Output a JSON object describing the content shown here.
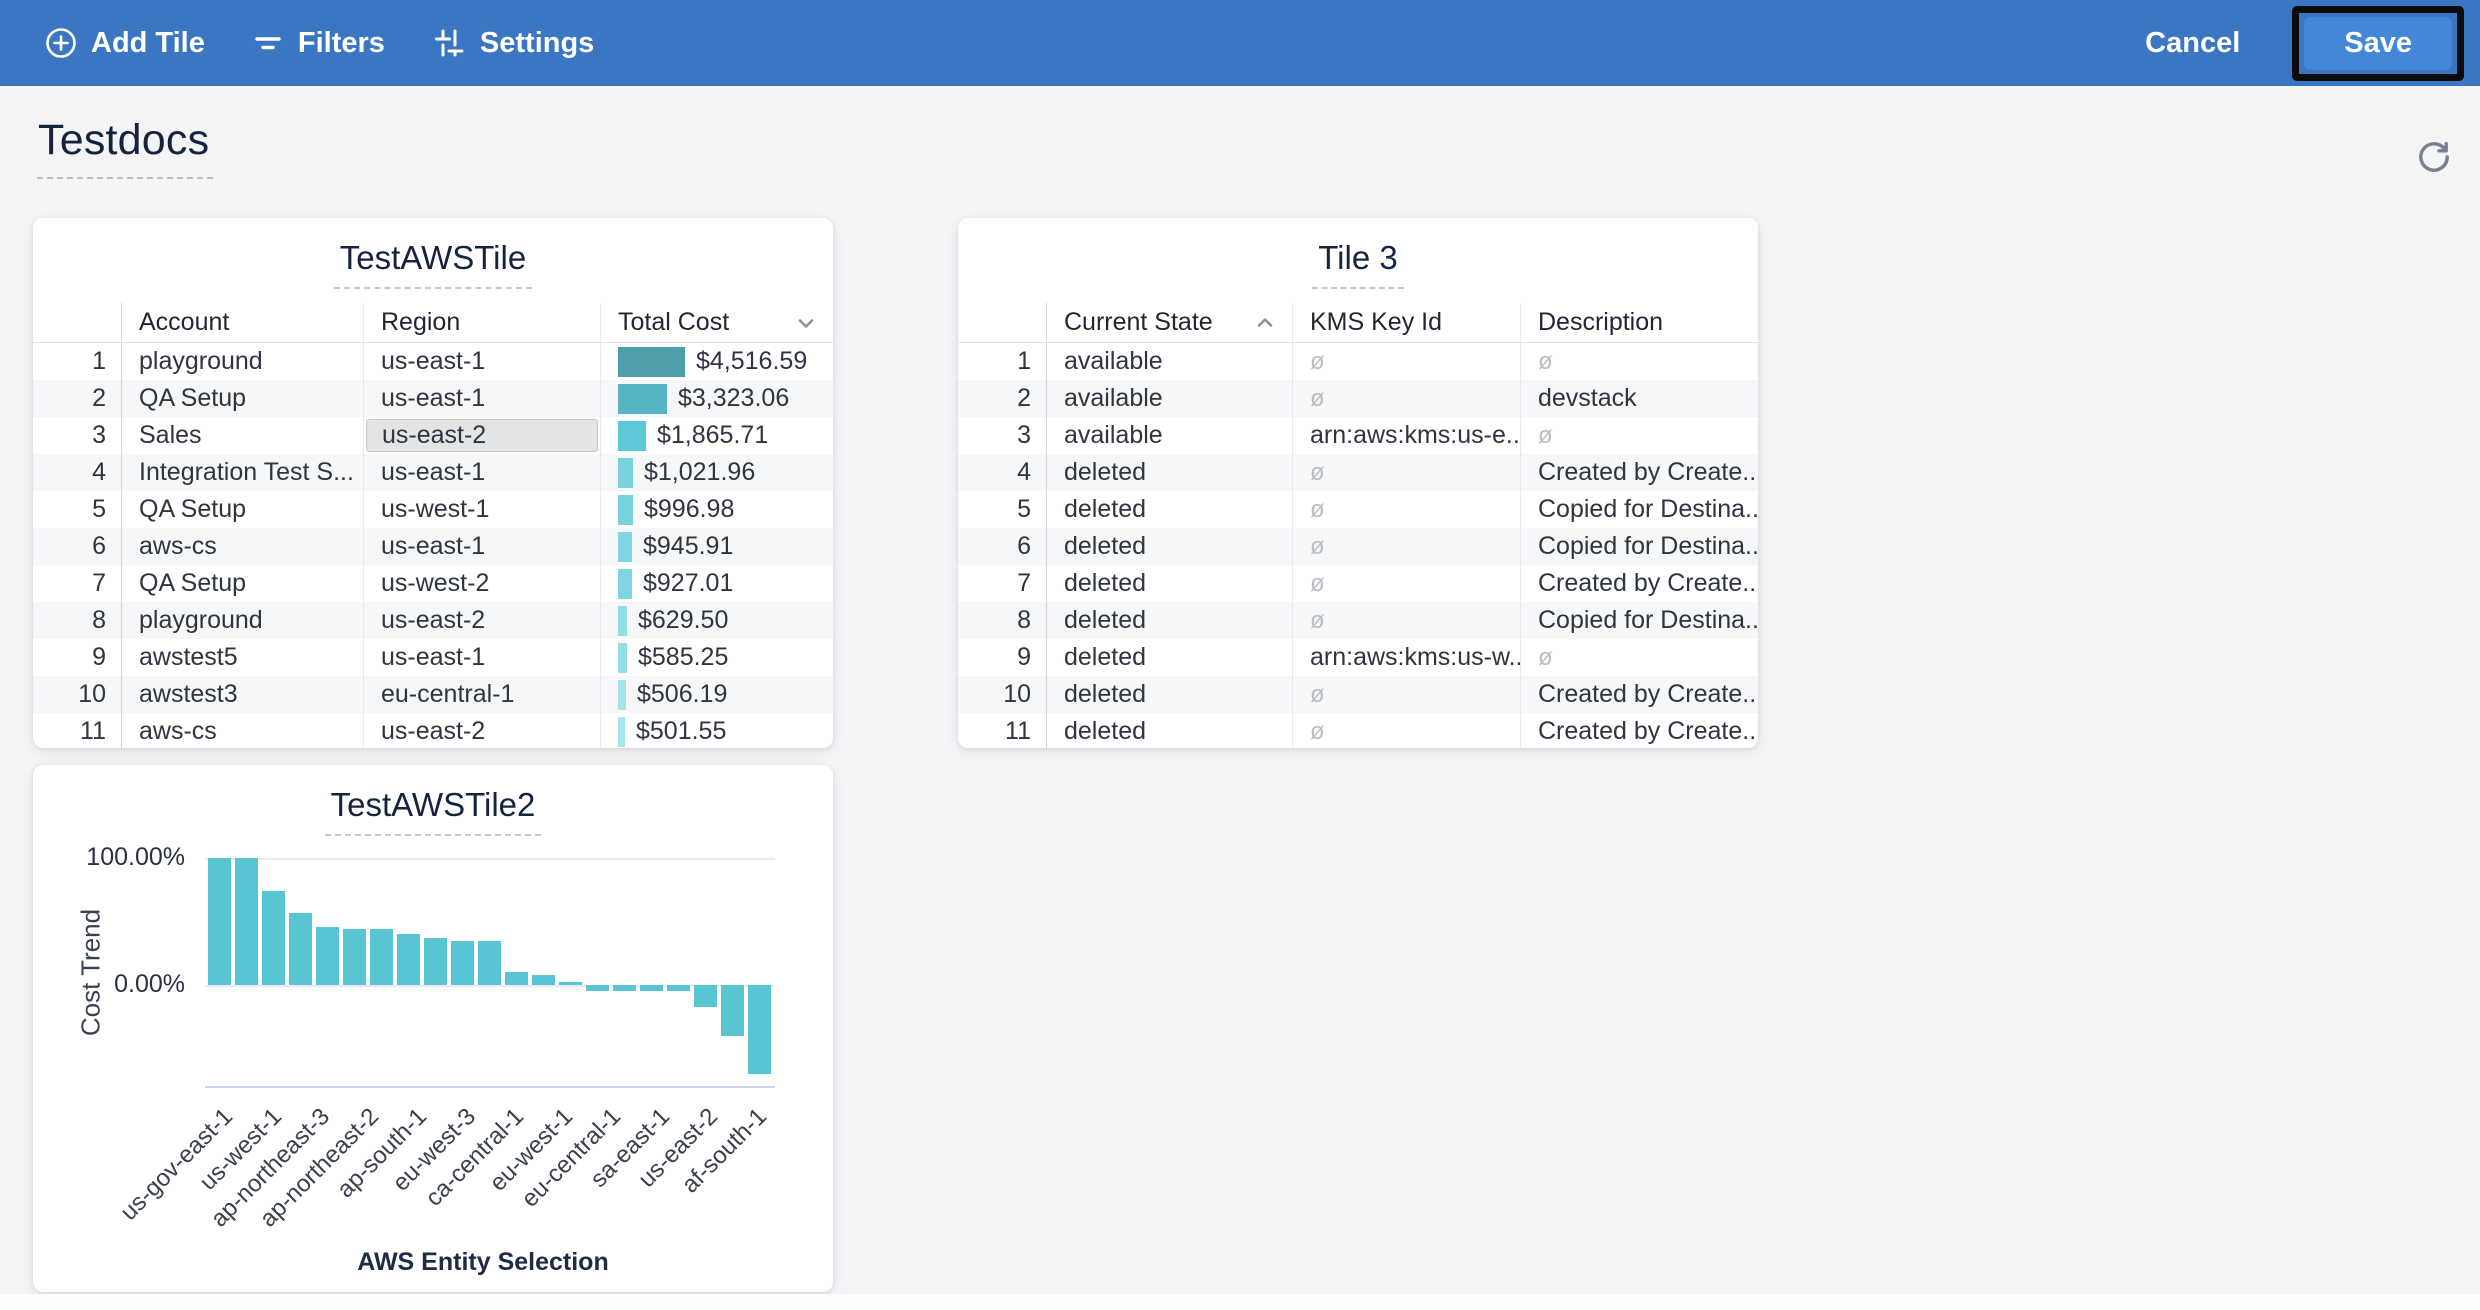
{
  "colors": {
    "toolbar_bg": "#3a76c2",
    "save_bg": "#4387d7",
    "chart_bar": "#58c5d2",
    "title_navy": "#16233e"
  },
  "toolbar": {
    "add_tile_label": "Add Tile",
    "filters_label": "Filters",
    "settings_label": "Settings",
    "cancel_label": "Cancel",
    "save_label": "Save"
  },
  "page": {
    "title": "Testdocs"
  },
  "tile1": {
    "title": "TestAWSTile",
    "columns": [
      "Account",
      "Region",
      "Total Cost"
    ],
    "sort_column": "Total Cost",
    "sort_direction": "desc",
    "max_value": 4516.59,
    "rows": [
      {
        "n": "1",
        "account": "playground",
        "region": "us-east-1",
        "cost": "$4,516.59",
        "value": 4516.59,
        "bar_color": "#4e9dab"
      },
      {
        "n": "2",
        "account": "QA Setup",
        "region": "us-east-1",
        "cost": "$3,323.06",
        "value": 3323.06,
        "bar_color": "#55b5c4"
      },
      {
        "n": "3",
        "account": "Sales",
        "region": "us-east-2",
        "cost": "$1,865.71",
        "value": 1865.71,
        "bar_color": "#5ec9d6",
        "region_selected": true
      },
      {
        "n": "4",
        "account": "Integration Test S...",
        "region": "us-east-1",
        "cost": "$1,021.96",
        "value": 1021.96,
        "bar_color": "#79d3dd"
      },
      {
        "n": "5",
        "account": "QA Setup",
        "region": "us-west-1",
        "cost": "$996.98",
        "value": 996.98,
        "bar_color": "#79d3dd"
      },
      {
        "n": "6",
        "account": "aws-cs",
        "region": "us-east-1",
        "cost": "$945.91",
        "value": 945.91,
        "bar_color": "#7fd6e0"
      },
      {
        "n": "7",
        "account": "QA Setup",
        "region": "us-west-2",
        "cost": "$927.01",
        "value": 927.01,
        "bar_color": "#7fd6e0"
      },
      {
        "n": "8",
        "account": "playground",
        "region": "us-east-2",
        "cost": "$629.50",
        "value": 629.5,
        "bar_color": "#93dde6"
      },
      {
        "n": "9",
        "account": "awstest5",
        "region": "us-east-1",
        "cost": "$585.25",
        "value": 585.25,
        "bar_color": "#93dde6"
      },
      {
        "n": "10",
        "account": "awstest3",
        "region": "eu-central-1",
        "cost": "$506.19",
        "value": 506.19,
        "bar_color": "#a5e4eb"
      },
      {
        "n": "11",
        "account": "aws-cs",
        "region": "us-east-2",
        "cost": "$501.55",
        "value": 501.55,
        "bar_color": "#a5e4eb"
      }
    ],
    "clipped_bar_color": "#a5e4eb"
  },
  "tile3": {
    "title": "Tile 3",
    "columns": [
      "Current State",
      "KMS Key Id",
      "Description"
    ],
    "sort_column": "Current State",
    "sort_direction": "asc",
    "null_symbol": "ø",
    "rows": [
      {
        "n": "1",
        "state": "available",
        "kms": null,
        "desc": null
      },
      {
        "n": "2",
        "state": "available",
        "kms": null,
        "desc": "devstack"
      },
      {
        "n": "3",
        "state": "available",
        "kms": "arn:aws:kms:us-e...",
        "desc": null
      },
      {
        "n": "4",
        "state": "deleted",
        "kms": null,
        "desc": "Created by Create..."
      },
      {
        "n": "5",
        "state": "deleted",
        "kms": null,
        "desc": "Copied for Destina..."
      },
      {
        "n": "6",
        "state": "deleted",
        "kms": null,
        "desc": "Copied for Destina..."
      },
      {
        "n": "7",
        "state": "deleted",
        "kms": null,
        "desc": "Created by Create..."
      },
      {
        "n": "8",
        "state": "deleted",
        "kms": null,
        "desc": "Copied for Destina..."
      },
      {
        "n": "9",
        "state": "deleted",
        "kms": "arn:aws:kms:us-w...",
        "desc": null
      },
      {
        "n": "10",
        "state": "deleted",
        "kms": null,
        "desc": "Created by Create..."
      },
      {
        "n": "11",
        "state": "deleted",
        "kms": null,
        "desc": "Created by Create..."
      }
    ]
  },
  "chart_data": {
    "type": "bar",
    "title": "TestAWSTile2",
    "xlabel": "AWS Entity Selection",
    "ylabel": "Cost Trend",
    "y_tick_labels": [
      "100.00%",
      "0.00%"
    ],
    "ylim": [
      -83,
      110
    ],
    "grid": true,
    "legend": "none",
    "bar_color": "#58c5d2",
    "values": [
      100,
      100,
      74,
      57,
      46,
      44,
      44,
      40,
      37,
      35,
      35,
      10,
      8,
      2,
      -5,
      -5,
      -5,
      -5,
      -17,
      -40,
      -70
    ],
    "x_tick_labels": [
      "us-gov-east-1",
      "us-west-1",
      "ap-northeast-3",
      "ap-northeast-2",
      "ap-south-1",
      "eu-west-3",
      "ca-central-1",
      "eu-west-1",
      "eu-central-1",
      "sa-east-1",
      "us-east-2",
      "af-south-1"
    ]
  }
}
